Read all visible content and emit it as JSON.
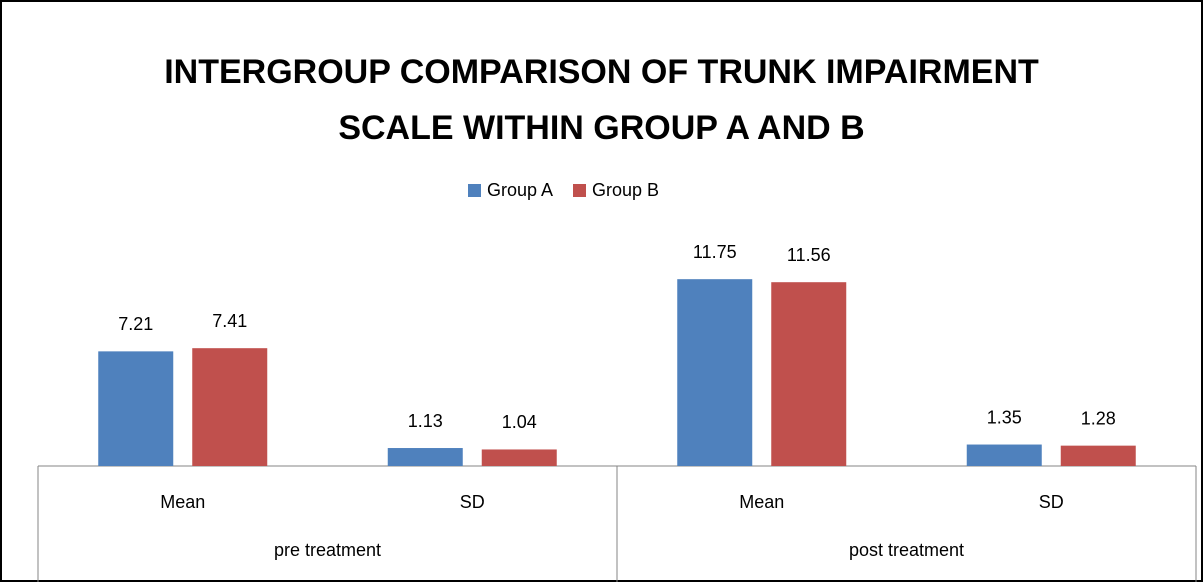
{
  "chart_data": {
    "type": "bar",
    "title": "INTERGROUP COMPARISON OF TRUNK IMPAIRMENT SCALE WITHIN GROUP A AND B",
    "categories": [
      "Mean",
      "SD",
      "Mean",
      "SD"
    ],
    "group_labels": [
      "pre treatment",
      "post treatment"
    ],
    "series": [
      {
        "name": "Group A",
        "color": "#4f81bd",
        "values": [
          7.21,
          1.13,
          11.75,
          1.35
        ]
      },
      {
        "name": "Group B",
        "color": "#c0504d",
        "values": [
          7.41,
          1.04,
          11.56,
          1.28
        ]
      }
    ],
    "legend": "top"
  }
}
